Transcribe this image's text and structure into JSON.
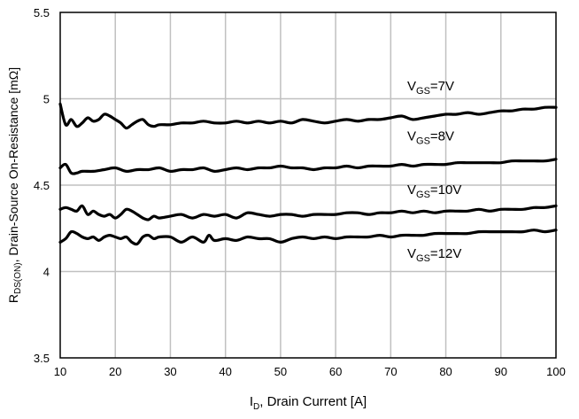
{
  "chart_data": {
    "type": "line",
    "title": "",
    "xlabel": {
      "main": "I",
      "sub": "D",
      "rest": ", Drain Current [A]"
    },
    "ylabel": {
      "main": "R",
      "sub": "DS(ON)",
      "rest": ", Drain-Source On-Resistance [mΩ]"
    },
    "xlim": [
      10,
      100
    ],
    "ylim": [
      3.5,
      5.5
    ],
    "xticks": [
      10,
      20,
      30,
      40,
      50,
      60,
      70,
      80,
      90,
      100
    ],
    "yticks": [
      3.5,
      4,
      4.5,
      5,
      5.5
    ],
    "ytick_labels": [
      "3.5",
      "4",
      "4.5",
      "5",
      "5.5"
    ],
    "grid": true,
    "series": [
      {
        "name": "VGS=7V",
        "label": {
          "main": "V",
          "sub": "GS",
          "rest": "=7V"
        },
        "x": [
          10,
          11,
          12,
          13,
          14,
          15,
          16,
          17,
          18,
          19,
          20,
          21,
          22,
          23,
          24,
          25,
          26,
          27,
          28,
          30,
          32,
          34,
          36,
          38,
          40,
          42,
          44,
          46,
          48,
          50,
          52,
          54,
          56,
          58,
          60,
          62,
          64,
          66,
          68,
          70,
          72,
          74,
          76,
          78,
          80,
          82,
          84,
          86,
          88,
          90,
          92,
          94,
          96,
          98,
          100
        ],
        "y": [
          4.97,
          4.85,
          4.88,
          4.84,
          4.86,
          4.89,
          4.87,
          4.88,
          4.91,
          4.9,
          4.88,
          4.86,
          4.83,
          4.85,
          4.87,
          4.88,
          4.85,
          4.84,
          4.85,
          4.85,
          4.86,
          4.86,
          4.87,
          4.86,
          4.86,
          4.87,
          4.86,
          4.87,
          4.86,
          4.87,
          4.86,
          4.88,
          4.87,
          4.86,
          4.87,
          4.88,
          4.87,
          4.88,
          4.88,
          4.89,
          4.9,
          4.88,
          4.89,
          4.9,
          4.91,
          4.91,
          4.92,
          4.91,
          4.92,
          4.93,
          4.93,
          4.94,
          4.94,
          4.95,
          4.95
        ]
      },
      {
        "name": "VGS=8V",
        "label": {
          "main": "V",
          "sub": "GS",
          "rest": "=8V"
        },
        "x": [
          10,
          11,
          12,
          13,
          14,
          16,
          18,
          20,
          22,
          24,
          26,
          28,
          30,
          32,
          34,
          36,
          38,
          40,
          42,
          44,
          46,
          48,
          50,
          52,
          54,
          56,
          58,
          60,
          62,
          64,
          66,
          68,
          70,
          72,
          74,
          76,
          78,
          80,
          82,
          84,
          86,
          88,
          90,
          92,
          94,
          96,
          98,
          100
        ],
        "y": [
          4.6,
          4.62,
          4.57,
          4.57,
          4.58,
          4.58,
          4.59,
          4.6,
          4.58,
          4.59,
          4.59,
          4.6,
          4.58,
          4.59,
          4.59,
          4.6,
          4.58,
          4.59,
          4.6,
          4.59,
          4.6,
          4.6,
          4.61,
          4.6,
          4.6,
          4.59,
          4.6,
          4.6,
          4.61,
          4.6,
          4.61,
          4.61,
          4.61,
          4.62,
          4.61,
          4.62,
          4.62,
          4.62,
          4.63,
          4.63,
          4.63,
          4.63,
          4.63,
          4.64,
          4.64,
          4.64,
          4.64,
          4.65
        ]
      },
      {
        "name": "VGS=10V",
        "label": {
          "main": "V",
          "sub": "GS",
          "rest": "=10V"
        },
        "x": [
          10,
          11,
          12,
          13,
          14,
          15,
          16,
          17,
          18,
          19,
          20,
          21,
          22,
          23,
          24,
          25,
          26,
          27,
          28,
          30,
          32,
          34,
          36,
          38,
          40,
          42,
          44,
          46,
          48,
          50,
          52,
          54,
          56,
          58,
          60,
          62,
          64,
          66,
          68,
          70,
          72,
          74,
          76,
          78,
          80,
          82,
          84,
          86,
          88,
          90,
          92,
          94,
          96,
          98,
          100
        ],
        "y": [
          4.36,
          4.37,
          4.36,
          4.35,
          4.38,
          4.33,
          4.35,
          4.33,
          4.32,
          4.33,
          4.31,
          4.33,
          4.36,
          4.35,
          4.33,
          4.31,
          4.3,
          4.32,
          4.31,
          4.32,
          4.33,
          4.31,
          4.33,
          4.32,
          4.33,
          4.31,
          4.34,
          4.33,
          4.32,
          4.33,
          4.33,
          4.32,
          4.33,
          4.33,
          4.33,
          4.34,
          4.34,
          4.33,
          4.34,
          4.34,
          4.35,
          4.34,
          4.35,
          4.34,
          4.35,
          4.35,
          4.35,
          4.36,
          4.35,
          4.36,
          4.36,
          4.36,
          4.37,
          4.37,
          4.38
        ]
      },
      {
        "name": "VGS=12V",
        "label": {
          "main": "V",
          "sub": "GS",
          "rest": "=12V"
        },
        "x": [
          10,
          11,
          12,
          13,
          14,
          15,
          16,
          17,
          18,
          19,
          20,
          21,
          22,
          23,
          24,
          25,
          26,
          27,
          28,
          30,
          32,
          34,
          36,
          37,
          38,
          40,
          42,
          44,
          46,
          48,
          50,
          52,
          54,
          56,
          58,
          60,
          62,
          64,
          66,
          68,
          70,
          72,
          74,
          76,
          78,
          80,
          82,
          84,
          86,
          88,
          90,
          92,
          94,
          96,
          98,
          100
        ],
        "y": [
          4.17,
          4.19,
          4.23,
          4.22,
          4.2,
          4.19,
          4.2,
          4.18,
          4.2,
          4.21,
          4.2,
          4.19,
          4.2,
          4.17,
          4.16,
          4.2,
          4.21,
          4.19,
          4.2,
          4.2,
          4.17,
          4.2,
          4.17,
          4.21,
          4.18,
          4.19,
          4.18,
          4.2,
          4.19,
          4.19,
          4.17,
          4.19,
          4.2,
          4.19,
          4.2,
          4.19,
          4.2,
          4.2,
          4.2,
          4.21,
          4.2,
          4.21,
          4.21,
          4.21,
          4.22,
          4.22,
          4.22,
          4.22,
          4.23,
          4.23,
          4.23,
          4.23,
          4.23,
          4.24,
          4.23,
          4.24
        ]
      }
    ],
    "annotations": [
      {
        "series": 0,
        "x": 73,
        "y": 5.05
      },
      {
        "series": 1,
        "x": 73,
        "y": 4.76
      },
      {
        "series": 2,
        "x": 73,
        "y": 4.45
      },
      {
        "series": 3,
        "x": 73,
        "y": 4.08
      }
    ]
  }
}
